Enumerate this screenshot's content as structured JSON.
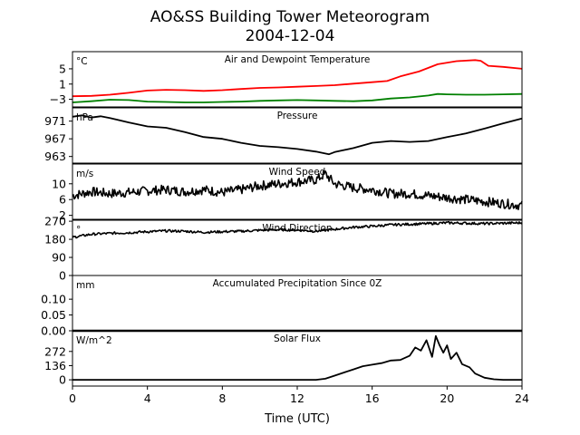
{
  "chart_data": {
    "type": "line",
    "title": "AO&SS Building Tower Meteorogram",
    "subtitle": "2004-12-04",
    "xlabel": "Time (UTC)",
    "xlim": [
      0,
      24
    ],
    "x_ticks": [
      0,
      4,
      8,
      12,
      16,
      20,
      24
    ],
    "panels": [
      {
        "title": "Air and Dewpoint Temperature",
        "unit": "°C",
        "ylim": [
          -5,
          9.5
        ],
        "yticks": [
          -3,
          1,
          5
        ],
        "ytick_labels": [
          "−3",
          "1",
          "5"
        ],
        "series": [
          {
            "color": "#ff0000",
            "x": [
              0,
              1,
              2,
              3,
              4,
              5,
              6,
              7,
              8,
              9,
              10,
              11,
              12,
              13,
              14,
              15,
              16,
              16.8,
              17.5,
              18.5,
              19.5,
              20.5,
              21.5,
              21.8,
              22.2,
              23,
              24
            ],
            "y": [
              -2.2,
              -2.1,
              -1.8,
              -1.3,
              -0.7,
              -0.5,
              -0.6,
              -0.8,
              -0.6,
              -0.3,
              0.0,
              0.1,
              0.3,
              0.5,
              0.7,
              1.1,
              1.5,
              1.8,
              3.0,
              4.3,
              6.2,
              7.0,
              7.3,
              7.1,
              5.8,
              5.5,
              5.0
            ]
          },
          {
            "color": "#008000",
            "x": [
              0,
              1,
              2,
              3,
              4,
              5,
              6,
              7,
              8,
              9,
              10,
              11,
              12,
              13,
              14,
              15,
              16,
              17,
              18,
              19,
              19.5,
              20,
              21,
              22,
              23,
              24
            ],
            "y": [
              -3.8,
              -3.5,
              -3.1,
              -3.2,
              -3.6,
              -3.7,
              -3.8,
              -3.8,
              -3.7,
              -3.6,
              -3.4,
              -3.3,
              -3.2,
              -3.3,
              -3.4,
              -3.5,
              -3.3,
              -2.8,
              -2.5,
              -2.0,
              -1.6,
              -1.7,
              -1.8,
              -1.8,
              -1.7,
              -1.6
            ]
          }
        ]
      },
      {
        "title": "Pressure",
        "unit": "hPa",
        "ylim": [
          961.5,
          974
        ],
        "yticks": [
          963,
          967,
          971
        ],
        "ytick_labels": [
          "963",
          "967",
          "971"
        ],
        "series": [
          {
            "color": "#000000",
            "x": [
              0,
              0.5,
              1,
              1.5,
              2,
              3,
              4,
              5,
              6,
              7,
              8,
              9,
              10,
              11,
              12,
              13,
              13.7,
              14,
              15,
              16,
              17,
              18,
              19,
              20,
              21,
              22,
              23,
              24
            ],
            "y": [
              972.0,
              972.3,
              971.8,
              972.1,
              971.7,
              970.7,
              969.8,
              969.5,
              968.5,
              967.4,
              967.0,
              966.1,
              965.4,
              965.1,
              964.7,
              964.1,
              963.5,
              964.0,
              964.9,
              966.1,
              966.5,
              966.3,
              966.5,
              967.4,
              968.2,
              969.3,
              970.5,
              971.6
            ]
          }
        ]
      },
      {
        "title": "Wind Speed",
        "unit": "m/s",
        "ylim": [
          1,
          15
        ],
        "yticks": [
          2,
          6,
          10
        ],
        "ytick_labels": [
          "2",
          "6",
          "10"
        ],
        "series": [
          {
            "color": "#000000",
            "x": [
              0,
              1,
              2,
              3,
              4,
              5,
              6,
              7,
              8,
              9,
              10,
              11,
              12,
              13,
              13.5,
              14,
              15,
              16,
              17,
              18,
              19,
              20,
              21,
              22,
              23,
              24
            ],
            "y": [
              7.0,
              8.0,
              7.5,
              7.8,
              8.2,
              8.5,
              8.0,
              8.5,
              7.8,
              8.5,
              9.5,
              10.0,
              10.5,
              11.0,
              12.5,
              10.0,
              9.0,
              8.5,
              7.5,
              7.5,
              7.0,
              6.5,
              6.0,
              5.5,
              5.0,
              4.5
            ]
          }
        ]
      },
      {
        "title": "Wind Direction",
        "unit": "°",
        "ylim": [
          0,
          275
        ],
        "yticks": [
          0,
          90,
          180,
          270
        ],
        "ytick_labels": [
          "0",
          "90",
          "180",
          "270"
        ],
        "series": [
          {
            "color": "#000000",
            "x": [
              0,
              1,
              2,
              3,
              4,
              5,
              6,
              7,
              8,
              9,
              10,
              11,
              12,
              13,
              14,
              15,
              16,
              17,
              18,
              19,
              20,
              21,
              22,
              23,
              24
            ],
            "y": [
              190,
              205,
              210,
              213,
              218,
              222,
              220,
              215,
              218,
              220,
              225,
              228,
              226,
              220,
              230,
              240,
              245,
              252,
              255,
              258,
              262,
              260,
              258,
              260,
              262
            ]
          }
        ]
      },
      {
        "title": "Accumulated Precipitation Since 0Z",
        "unit": "mm",
        "ylim": [
          0,
          0.175
        ],
        "yticks": [
          0.0,
          0.05,
          0.1
        ],
        "ytick_labels": [
          "0.00",
          "0.05",
          "0.10"
        ],
        "series": [
          {
            "color": "#000000",
            "x": [
              0,
              24
            ],
            "y": [
              0,
              0
            ]
          }
        ]
      },
      {
        "title": "Solar Flux",
        "unit": "W/m^2",
        "ylim": [
          -60,
          470
        ],
        "yticks": [
          0,
          136,
          272
        ],
        "ytick_labels": [
          "0",
          "136",
          "272"
        ],
        "series": [
          {
            "color": "#000000",
            "x": [
              0,
              13,
              13.5,
              14,
              14.5,
              15,
              15.5,
              16,
              16.5,
              17,
              17.5,
              18,
              18.3,
              18.6,
              18.9,
              19.2,
              19.4,
              19.6,
              19.8,
              20.0,
              20.2,
              20.5,
              20.8,
              21.2,
              21.5,
              22,
              22.5,
              23,
              24
            ],
            "y": [
              0,
              0,
              10,
              40,
              70,
              100,
              130,
              145,
              160,
              185,
              190,
              230,
              310,
              280,
              380,
              220,
              420,
              330,
              260,
              330,
              200,
              260,
              150,
              120,
              60,
              20,
              5,
              0,
              0
            ]
          }
        ]
      }
    ]
  }
}
